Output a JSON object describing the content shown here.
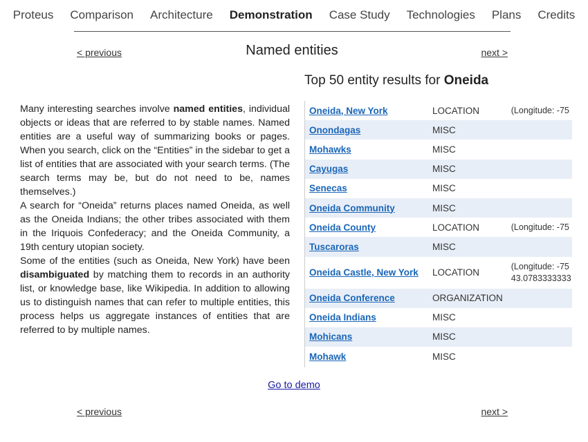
{
  "nav": {
    "items": [
      "Proteus",
      "Comparison",
      "Architecture",
      "Demonstration",
      "Case Study",
      "Technologies",
      "Plans",
      "Credits"
    ],
    "active": "Demonstration"
  },
  "pager_top": {
    "previous": "< previous",
    "title": "Named entities",
    "next": "next >"
  },
  "pager_bottom": {
    "previous": "< previous",
    "next": "next >"
  },
  "results": {
    "heading_prefix": "Top 50 entity results for ",
    "query": "Oneida"
  },
  "description": {
    "p1": {
      "before": "Many interesting searches involve ",
      "bold": "named entities",
      "after": ", individual objects or ideas that are referred to by stable names. Named entities are a useful way of summarizing books or pages. When you search, click on the “Entities” in the sidebar to get a list of entities that are associated with your search terms. (The search terms may be, but do not need to be, names themselves.)"
    },
    "p2": "A search for “Oneida” returns places named Oneida, as well as the Oneida Indians; the other tribes associated with them in the Iriquois Confederacy; and the Oneida Community, a 19th century utopian society.",
    "p3": {
      "before": "Some of the entities (such as Oneida, New York) have been ",
      "bold": "disambiguated",
      "after": " by matching them to records in an authority list, or knowledge base, like Wikipedia. In addition to allowing us to distinguish names that can refer to multiple entities, this process helps us aggregate instances of entities that are referred to by multiple names."
    }
  },
  "entities": [
    {
      "name": "Oneida, New York",
      "type": "LOCATION",
      "info": "(Longitude: -75"
    },
    {
      "name": "Onondagas",
      "type": "MISC",
      "info": ""
    },
    {
      "name": "Mohawks",
      "type": "MISC",
      "info": ""
    },
    {
      "name": "Cayugas",
      "type": "MISC",
      "info": ""
    },
    {
      "name": "Senecas",
      "type": "MISC",
      "info": ""
    },
    {
      "name": "Oneida Community",
      "type": "MISC",
      "info": ""
    },
    {
      "name": "Oneida County",
      "type": "LOCATION",
      "info": "(Longitude: -75"
    },
    {
      "name": "Tuscaroras",
      "type": "MISC",
      "info": ""
    },
    {
      "name": "Oneida Castle, New York",
      "type": "LOCATION",
      "info": "(Longitude: -75",
      "info2": "43.0783333333"
    },
    {
      "name": "Oneida Conference",
      "type": "ORGANIZATION",
      "info": ""
    },
    {
      "name": "Oneida Indians",
      "type": "MISC",
      "info": ""
    },
    {
      "name": "Mohicans",
      "type": "MISC",
      "info": ""
    },
    {
      "name": "Mohawk",
      "type": "MISC",
      "info": ""
    }
  ],
  "demo_link": "Go to demo",
  "colors": {
    "link": "#1a66b8",
    "row_alt": "#e8eef7",
    "demo_link": "#1a1aa6"
  }
}
